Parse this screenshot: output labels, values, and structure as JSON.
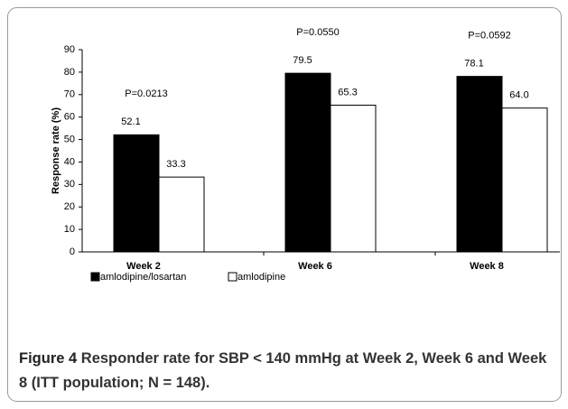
{
  "chart_data": {
    "type": "bar",
    "y_label": "Response rate (%)",
    "categories": [
      "Week 2",
      "Week 6",
      "Week 8"
    ],
    "annotations": [
      "P=0.0213",
      "P=0.0550",
      "P=0.0592"
    ],
    "series": [
      {
        "name": "amlodipine/losartan",
        "color": "#000000",
        "values": [
          52.1,
          79.5,
          78.1
        ],
        "value_labels": [
          "52.1",
          "79.5",
          "78.1"
        ]
      },
      {
        "name": "amlodipine",
        "color": "#ffffff",
        "values": [
          33.3,
          65.3,
          64.0
        ],
        "value_labels": [
          "33.3",
          "65.3",
          "64.0"
        ]
      }
    ],
    "ylim": [
      0,
      90
    ],
    "yticks": [
      0,
      10,
      20,
      30,
      40,
      50,
      60,
      70,
      80,
      90
    ],
    "grid": false,
    "caption_label": "Figure 4",
    "caption": "Responder rate for SBP < 140 mmHg at Week 2, Week 6 and Week 8 (ITT population; N = 148)."
  }
}
